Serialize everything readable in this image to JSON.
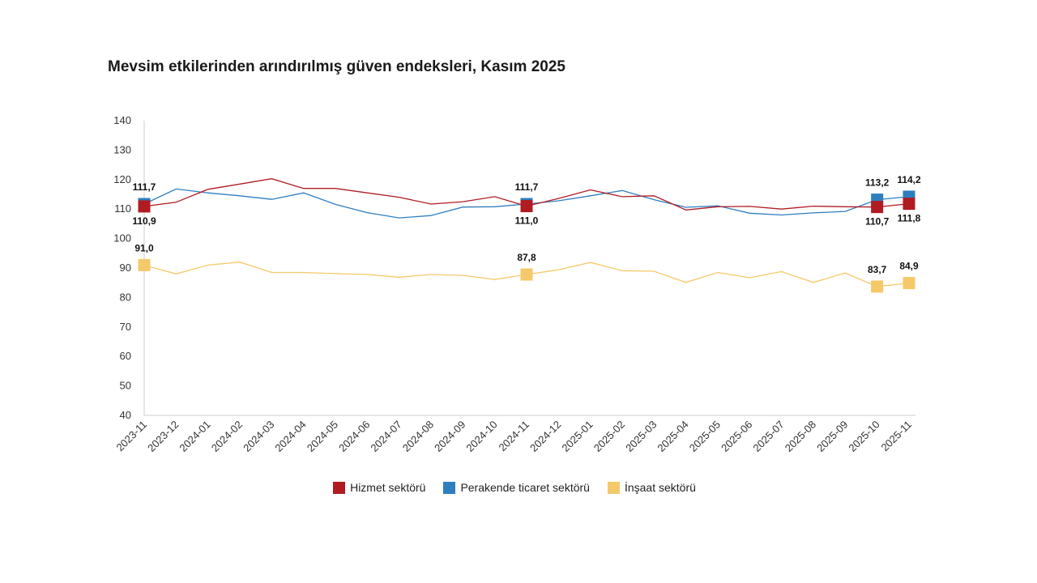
{
  "chart_data": {
    "type": "line",
    "title": "Mevsim etkilerinden arındırılmış güven endeksleri, Kasım 2025",
    "xlabel": "",
    "ylabel": "",
    "ylim": [
      40,
      140
    ],
    "yticks": [
      40,
      50,
      60,
      70,
      80,
      90,
      100,
      110,
      120,
      130,
      140
    ],
    "grid": false,
    "legend_position": "bottom",
    "categories": [
      "2023-11",
      "2023-12",
      "2024-01",
      "2024-02",
      "2024-03",
      "2024-04",
      "2024-05",
      "2024-06",
      "2024-07",
      "2024-08",
      "2024-09",
      "2024-10",
      "2024-11",
      "2024-12",
      "2025-01",
      "2025-02",
      "2025-03",
      "2025-04",
      "2025-05",
      "2025-06",
      "2025-07",
      "2025-08",
      "2025-09",
      "2025-10",
      "2025-11"
    ],
    "series": [
      {
        "name": "Hizmet sektörü",
        "color": "#b01c22",
        "values": [
          110.9,
          112.3,
          116.7,
          118.5,
          120.3,
          117.0,
          117.0,
          115.5,
          114.0,
          111.7,
          112.5,
          114.2,
          111.0,
          113.6,
          116.5,
          114.2,
          114.5,
          109.7,
          110.8,
          110.9,
          110.0,
          111.0,
          110.8,
          110.7,
          111.8
        ],
        "marked": [
          {
            "index": 0,
            "label": "110,9"
          },
          {
            "index": 12,
            "label": "111,0"
          },
          {
            "index": 23,
            "label": "110,7"
          },
          {
            "index": 24,
            "label": "111,8"
          }
        ]
      },
      {
        "name": "Perakende ticaret sektörü",
        "color": "#2e7ebf",
        "values": [
          111.7,
          116.8,
          115.5,
          114.5,
          113.3,
          115.5,
          111.6,
          108.8,
          107.0,
          107.8,
          110.7,
          110.8,
          111.7,
          112.8,
          114.5,
          116.3,
          113.2,
          110.6,
          111.1,
          108.6,
          108.0,
          108.7,
          109.2,
          113.2,
          114.2
        ],
        "marked": [
          {
            "index": 0,
            "label": "111,7"
          },
          {
            "index": 12,
            "label": "111,7"
          },
          {
            "index": 23,
            "label": "113,2"
          },
          {
            "index": 24,
            "label": "114,2"
          }
        ]
      },
      {
        "name": "İnşaat sektörü",
        "color": "#f5c96a",
        "values": [
          91.0,
          88.0,
          91.0,
          92.0,
          88.5,
          88.5,
          88.1,
          87.8,
          86.9,
          87.8,
          87.5,
          86.1,
          87.8,
          89.4,
          91.9,
          89.1,
          88.9,
          85.1,
          88.5,
          86.7,
          88.8,
          85.1,
          88.3,
          83.7,
          84.9
        ],
        "marked": [
          {
            "index": 0,
            "label": "91,0"
          },
          {
            "index": 12,
            "label": "87,8"
          },
          {
            "index": 23,
            "label": "83,7"
          },
          {
            "index": 24,
            "label": "84,9"
          }
        ]
      }
    ]
  }
}
